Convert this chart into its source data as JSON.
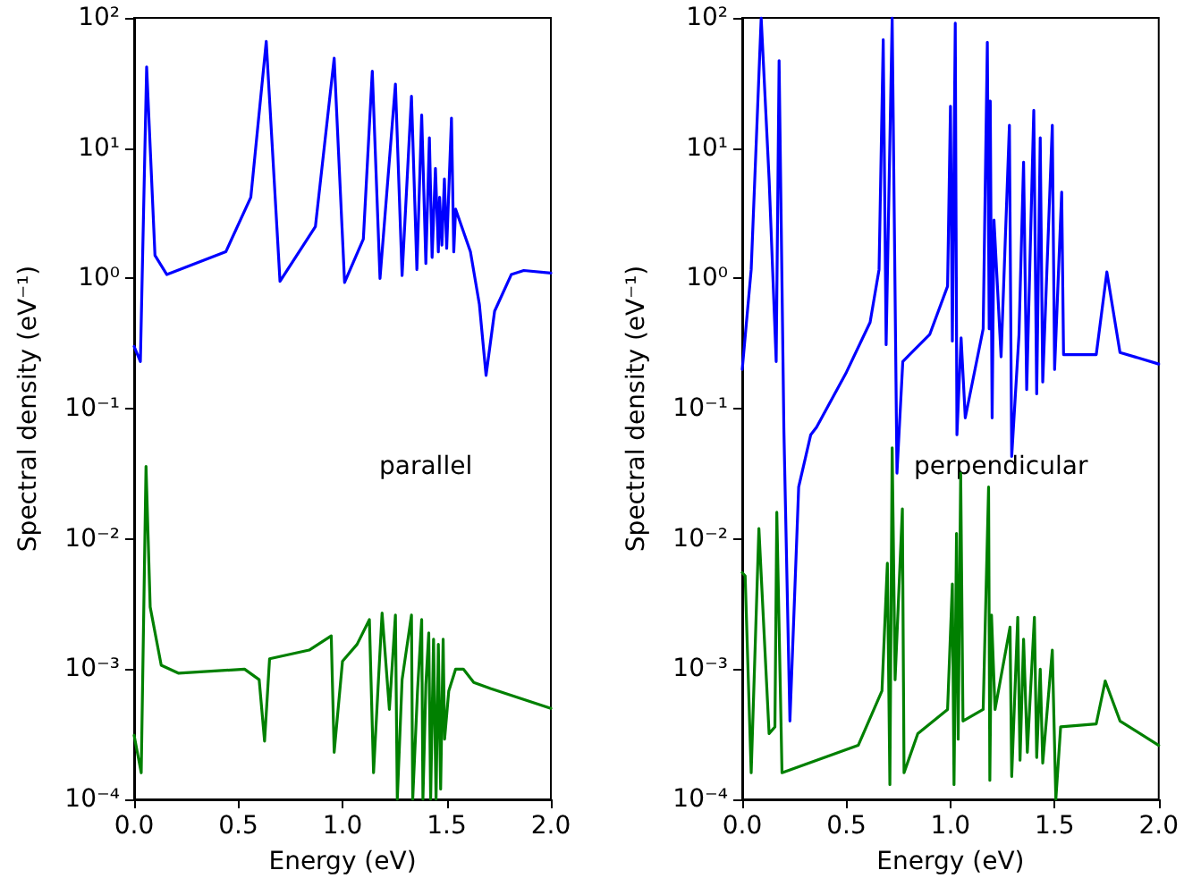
{
  "chart_data": [
    {
      "type": "line",
      "xlabel": "Energy (eV)",
      "ylabel": "Spectral density (eV⁻¹)",
      "annotations": [
        "parallel"
      ],
      "log": "y",
      "grid": false,
      "marker": "none",
      "line_style": "solid",
      "xlim": [
        0,
        2
      ],
      "xticks": [
        {
          "value": 0,
          "label": "0.0"
        },
        {
          "value": 0.5,
          "label": "0.5"
        },
        {
          "value": 1,
          "label": "1.0"
        },
        {
          "value": 1.5,
          "label": "1.5"
        },
        {
          "value": 2,
          "label": "2.0"
        }
      ],
      "ylim": [
        0.0001,
        100
      ],
      "yticks": [
        {
          "value": 0.0001,
          "label": "10⁻⁴"
        },
        {
          "value": 0.001,
          "label": "10⁻³"
        },
        {
          "value": 0.01,
          "label": "10⁻²"
        },
        {
          "value": 0.1,
          "label": "10⁻¹"
        },
        {
          "value": 1,
          "label": "10⁰"
        },
        {
          "value": 10,
          "label": "10¹"
        },
        {
          "value": 100,
          "label": "10²"
        }
      ],
      "series": [
        {
          "color": "#0000ff",
          "x": [
            0,
            0.03,
            0.06,
            0.1,
            0.157,
            0.44,
            0.56,
            0.634,
            0.7,
            0.87,
            0.96,
            1.01,
            1.1,
            1.143,
            1.18,
            1.254,
            1.286,
            1.331,
            1.357,
            1.38,
            1.4,
            1.417,
            1.43,
            1.446,
            1.46,
            1.466,
            1.477,
            1.489,
            1.5,
            1.523,
            1.534,
            1.543,
            1.614,
            1.657,
            1.689,
            1.73,
            1.81,
            1.87,
            2.0
          ],
          "values": [
            0.3,
            0.23,
            42,
            1.5,
            1.07,
            1.6,
            4.2,
            66,
            0.95,
            2.5,
            49,
            0.93,
            2,
            39,
            1,
            31,
            1.05,
            25,
            1.17,
            18,
            1.3,
            12,
            1.45,
            7,
            1.6,
            4.2,
            1.8,
            5.8,
            1.7,
            17,
            1.6,
            3.4,
            1.6,
            0.63,
            0.18,
            0.56,
            1.07,
            1.15,
            1.1
          ]
        },
        {
          "color": "#008000",
          "x": [
            0,
            0.034,
            0.057,
            0.077,
            0.13,
            0.214,
            0.53,
            0.6,
            0.626,
            0.65,
            0.84,
            0.946,
            0.96,
            1.0,
            1.07,
            1.129,
            1.149,
            1.171,
            1.19,
            1.225,
            1.254,
            1.263,
            1.286,
            1.331,
            1.337,
            1.36,
            1.38,
            1.386,
            1.4,
            1.414,
            1.423,
            1.437,
            1.449,
            1.46,
            1.471,
            1.483,
            1.49,
            1.51,
            1.543,
            1.58,
            1.63,
            1.71,
            2.0
          ],
          "values": [
            0.00031,
            0.00016,
            0.036,
            0.003,
            0.00107,
            0.00093,
            0.001,
            0.00083,
            0.00028,
            0.0012,
            0.0014,
            0.0018,
            0.00023,
            0.00115,
            0.00155,
            0.0024,
            0.00016,
            0.00074,
            0.0027,
            0.00049,
            0.0026,
            0.0001,
            0.00083,
            0.0026,
            0.0001,
            0.00068,
            0.0024,
            0.0001,
            0.00076,
            0.0019,
            0.0001,
            0.0017,
            0.0001,
            0.00155,
            0.00012,
            0.0017,
            0.00029,
            0.00068,
            0.001,
            0.001,
            0.00079,
            0.00071,
            0.0005
          ]
        }
      ]
    },
    {
      "type": "line",
      "xlabel": "Energy (eV)",
      "ylabel": "Spectral density (eV⁻¹)",
      "annotations": [
        "perpendicular"
      ],
      "log": "y",
      "grid": false,
      "marker": "none",
      "line_style": "solid",
      "xlim": [
        0,
        2
      ],
      "xticks": [
        {
          "value": 0,
          "label": "0.0"
        },
        {
          "value": 0.5,
          "label": "0.5"
        },
        {
          "value": 1,
          "label": "1.0"
        },
        {
          "value": 1.5,
          "label": "1.5"
        },
        {
          "value": 2,
          "label": "2.0"
        }
      ],
      "ylim": [
        0.0001,
        100
      ],
      "yticks": [
        {
          "value": 0.0001,
          "label": "10⁻⁴"
        },
        {
          "value": 0.001,
          "label": "10⁻³"
        },
        {
          "value": 0.01,
          "label": "10⁻²"
        },
        {
          "value": 0.1,
          "label": "10⁻¹"
        },
        {
          "value": 1,
          "label": "10⁰"
        },
        {
          "value": 10,
          "label": "10¹"
        },
        {
          "value": 100,
          "label": "10²"
        }
      ],
      "series": [
        {
          "color": "#0000ff",
          "x": [
            0,
            0.043,
            0.091,
            0.129,
            0.163,
            0.177,
            0.2,
            0.229,
            0.271,
            0.329,
            0.357,
            0.5,
            0.614,
            0.657,
            0.677,
            0.691,
            0.72,
            0.743,
            0.771,
            0.9,
            0.986,
            1.0,
            1.009,
            1.023,
            1.031,
            1.051,
            1.071,
            1.157,
            1.177,
            1.186,
            1.191,
            1.2,
            1.209,
            1.243,
            1.283,
            1.294,
            1.329,
            1.351,
            1.366,
            1.4,
            1.414,
            1.431,
            1.443,
            1.489,
            1.5,
            1.534,
            1.543,
            1.7,
            1.751,
            1.814,
            2.0
          ],
          "values": [
            0.2,
            1.17,
            100,
            5.8,
            0.23,
            47,
            0.069,
            0.0004,
            0.025,
            0.063,
            0.072,
            0.19,
            0.46,
            1.17,
            68,
            0.31,
            100,
            0.032,
            0.23,
            0.37,
            0.87,
            21,
            0.33,
            91,
            0.063,
            0.35,
            0.085,
            0.41,
            65,
            0.41,
            23,
            0.085,
            2.8,
            0.25,
            15,
            0.043,
            0.37,
            7.8,
            0.14,
            19.5,
            0.13,
            12,
            0.16,
            15,
            0.2,
            4.6,
            0.26,
            0.26,
            1.12,
            0.27,
            0.22
          ]
        },
        {
          "color": "#008000",
          "x": [
            0,
            0.014,
            0.043,
            0.08,
            0.129,
            0.157,
            0.166,
            0.191,
            0.557,
            0.671,
            0.697,
            0.709,
            0.72,
            0.734,
            0.769,
            0.777,
            0.843,
            0.986,
            1.009,
            1.017,
            1.029,
            1.037,
            1.049,
            1.06,
            1.157,
            1.183,
            1.189,
            1.197,
            1.214,
            1.286,
            1.294,
            1.323,
            1.334,
            1.351,
            1.369,
            1.403,
            1.414,
            1.431,
            1.443,
            1.489,
            1.506,
            1.529,
            1.7,
            1.743,
            1.814,
            2.0
          ],
          "values": [
            0.0055,
            0.0052,
            0.00016,
            0.012,
            0.00032,
            0.00036,
            0.016,
            0.00016,
            0.00026,
            0.00068,
            0.0065,
            0.00013,
            0.05,
            0.00083,
            0.017,
            0.00016,
            0.00032,
            0.00049,
            0.0045,
            0.00013,
            0.011,
            0.00029,
            0.032,
            0.0004,
            0.00049,
            0.025,
            0.00014,
            0.0026,
            0.00049,
            0.0021,
            0.00015,
            0.0025,
            0.0002,
            0.0017,
            0.00023,
            0.0025,
            0.00021,
            0.001,
            0.00019,
            0.0014,
            0.0001,
            0.00036,
            0.00038,
            0.00081,
            0.0004,
            0.00026
          ]
        }
      ]
    }
  ]
}
